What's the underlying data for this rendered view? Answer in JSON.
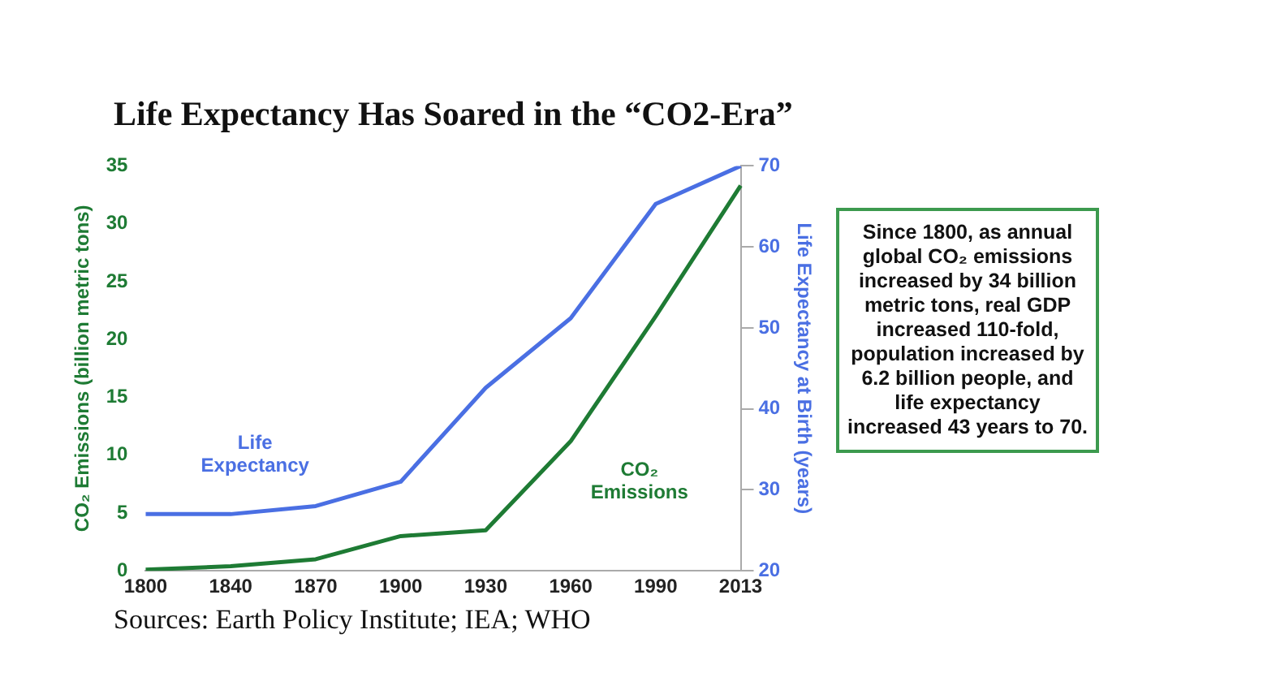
{
  "chart_data": {
    "type": "line",
    "title": "Life Expectancy Has Soared in the “CO2-Era”",
    "categories": [
      "1800",
      "1840",
      "1870",
      "1900",
      "1930",
      "1960",
      "1990",
      "2013"
    ],
    "ylabel": "CO₂ Emissions (billion metric tons)",
    "y2label": "Life Expectancy at Birth (years)",
    "ylim": [
      0,
      35
    ],
    "yticks": [
      0,
      5,
      10,
      15,
      20,
      25,
      30,
      35
    ],
    "y2lim": [
      20,
      70
    ],
    "y2ticks": [
      20,
      30,
      40,
      50,
      60,
      70
    ],
    "series": [
      {
        "name": "Life Expectancy",
        "color": "#4a6fe3",
        "axis": "y2",
        "values": [
          27,
          27,
          28,
          31,
          42.6,
          51.2,
          65.3,
          70
        ]
      },
      {
        "name": "CO₂ Emissions",
        "color": "#1e7b34",
        "values": [
          0.1,
          0.4,
          1,
          3,
          3.5,
          11.2,
          22,
          33.3
        ]
      }
    ],
    "annotations": [
      "Since 1800, as annual global CO₂ emissions increased by 34 billion metric tons, real GDP increased 110-fold, population increased by 6.2 billion people, and life expectancy increased 43 years to 70.",
      "Sources: Earth Policy Institute; IEA; WHO"
    ],
    "grid": false,
    "legend": false,
    "marker": "none",
    "line_style": "solid"
  }
}
